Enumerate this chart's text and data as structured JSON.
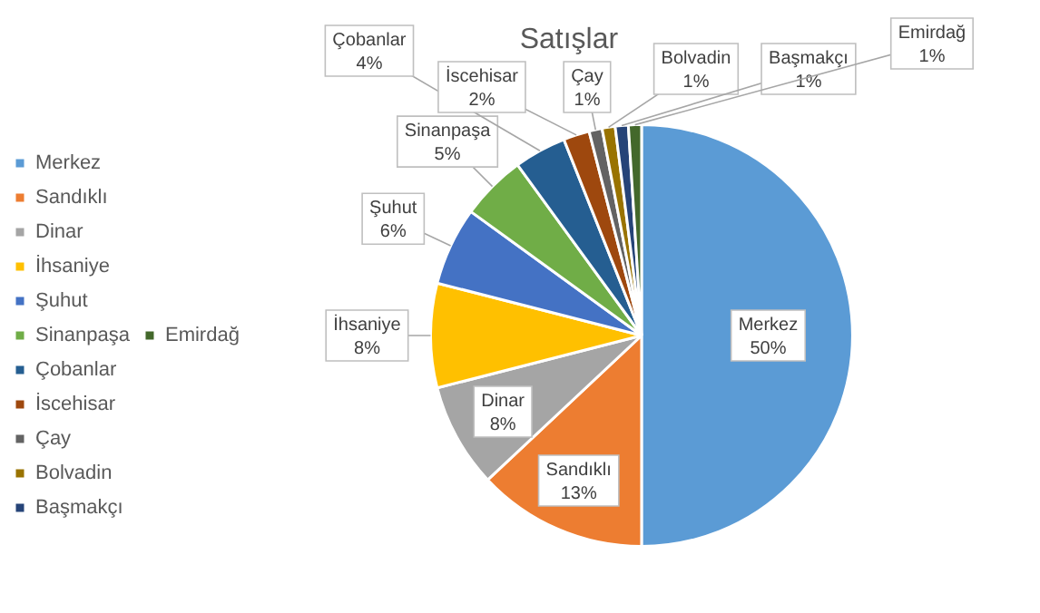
{
  "chart_data": {
    "type": "pie",
    "title": "Satışlar",
    "categories": [
      "Merkez",
      "Sandıklı",
      "Dinar",
      "İhsaniye",
      "Şuhut",
      "Sinanpaşa",
      "Çobanlar",
      "İscehisar",
      "Çay",
      "Bolvadin",
      "Başmakçı",
      "Emirdağ"
    ],
    "values": [
      50,
      13,
      8,
      8,
      6,
      5,
      4,
      2,
      1,
      1,
      1,
      1
    ],
    "value_labels": [
      "50%",
      "13%",
      "8%",
      "8%",
      "6%",
      "5%",
      "4%",
      "2%",
      "1%",
      "1%",
      "1%",
      "1%"
    ],
    "colors": [
      "#5b9bd5",
      "#ed7d31",
      "#a5a5a5",
      "#ffc000",
      "#4472c4",
      "#70ad47",
      "#255e91",
      "#9e480e",
      "#636363",
      "#997300",
      "#264478",
      "#43682b"
    ],
    "legend": "left"
  }
}
